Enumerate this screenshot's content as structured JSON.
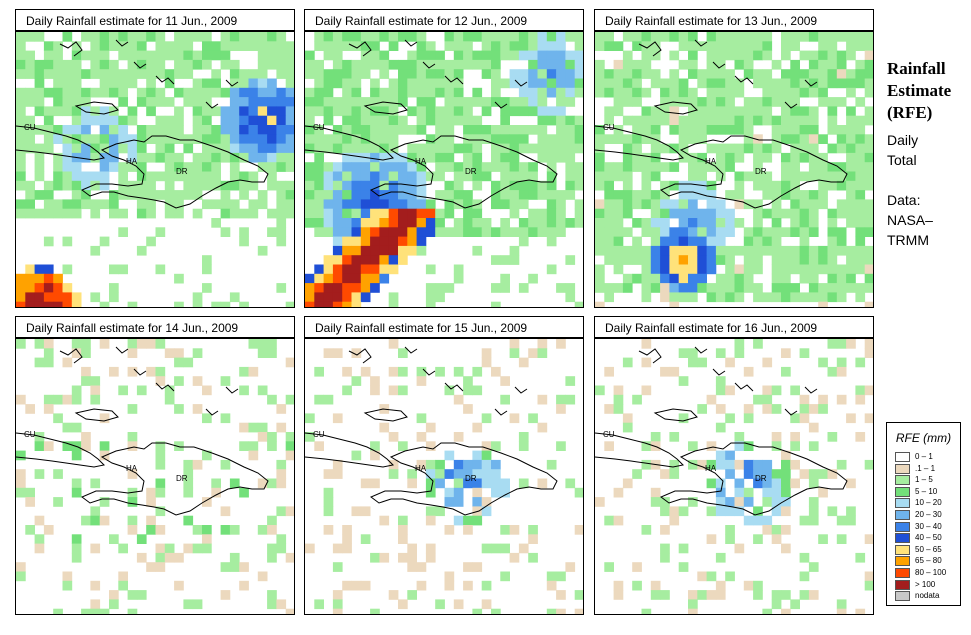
{
  "panels": [
    {
      "title": "Daily Rainfall estimate for  11 Jun., 2009"
    },
    {
      "title": "Daily Rainfall estimate for  12 Jun., 2009"
    },
    {
      "title": "Daily Rainfall estimate for  13 Jun., 2009"
    },
    {
      "title": "Daily Rainfall estimate for  14 Jun., 2009"
    },
    {
      "title": "Daily Rainfall estimate for  15 Jun., 2009"
    },
    {
      "title": "Daily Rainfall estimate for  16 Jun., 2009"
    }
  ],
  "map_labels": {
    "cuba": "CU",
    "haiti": "HA",
    "dominican_republic": "DR"
  },
  "side": {
    "title_line1": "Rainfall",
    "title_line2": "Estimate",
    "title_line3": "(RFE)",
    "period_line1": "Daily",
    "period_line2": "Total",
    "data_line1": "Data:",
    "data_line2": "NASA–",
    "data_line3": "TRMM"
  },
  "legend": {
    "title": "RFE (mm)",
    "items": [
      {
        "label": "0 – 1",
        "color": "#ffffff"
      },
      {
        "label": ".1 – 1",
        "color": "#ecd9be"
      },
      {
        "label": "1 – 5",
        "color": "#a6eda0"
      },
      {
        "label": "5 – 10",
        "color": "#73e07a"
      },
      {
        "label": "10 – 20",
        "color": "#a8dcf2"
      },
      {
        "label": "20 – 30",
        "color": "#6fb4ec"
      },
      {
        "label": "30 – 40",
        "color": "#3b82e8"
      },
      {
        "label": "40 – 50",
        "color": "#1f4fd6"
      },
      {
        "label": "50 – 65",
        "color": "#ffe27a"
      },
      {
        "label": "65 – 80",
        "color": "#ffa200"
      },
      {
        "label": "80 – 100",
        "color": "#ff4a00"
      },
      {
        "label": "> 100",
        "color": "#a31d1d"
      },
      {
        "label": "nodata",
        "color": "#c8c8c8"
      }
    ]
  }
}
